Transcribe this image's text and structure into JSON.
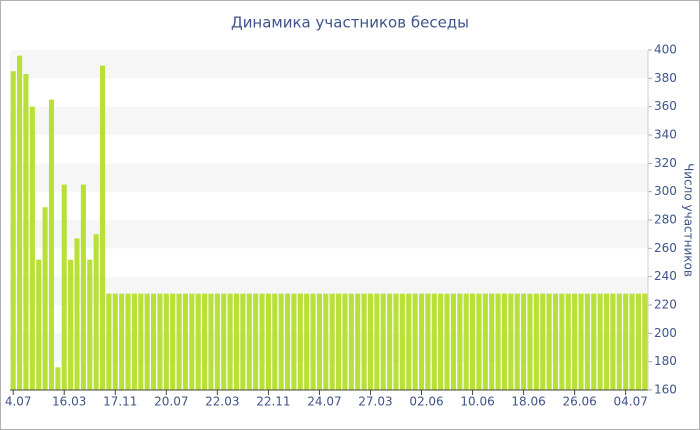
{
  "chart_data": {
    "type": "bar",
    "title": "Динамика участников беседы",
    "y_label": "Число участников",
    "categories": [
      "4.07",
      null,
      null,
      null,
      null,
      null,
      null,
      null,
      "16.03",
      null,
      null,
      null,
      null,
      null,
      null,
      null,
      "17.11",
      null,
      null,
      null,
      null,
      null,
      null,
      null,
      "20.07",
      null,
      null,
      null,
      null,
      null,
      null,
      null,
      "22.03",
      null,
      null,
      null,
      null,
      null,
      null,
      null,
      "22.11",
      null,
      null,
      null,
      null,
      null,
      null,
      null,
      "24.07",
      null,
      null,
      null,
      null,
      null,
      null,
      null,
      "27.03",
      null,
      null,
      null,
      null,
      null,
      null,
      null,
      "02.06",
      null,
      null,
      null,
      null,
      null,
      null,
      null,
      "10.06",
      null,
      null,
      null,
      null,
      null,
      null,
      null,
      "18.06",
      null,
      null,
      null,
      null,
      null,
      null,
      null,
      "26.06",
      null,
      null,
      null,
      null,
      null,
      null,
      null,
      "04.07",
      null,
      null,
      null
    ],
    "values": [
      385,
      396,
      383,
      360,
      252,
      289,
      365,
      176,
      305,
      252,
      267,
      305,
      252,
      270,
      389,
      228,
      228,
      228,
      228,
      228,
      228,
      228,
      228,
      228,
      228,
      228,
      228,
      228,
      228,
      228,
      228,
      228,
      228,
      228,
      228,
      228,
      228,
      228,
      228,
      228,
      228,
      228,
      228,
      228,
      228,
      228,
      228,
      228,
      228,
      228,
      228,
      228,
      228,
      228,
      228,
      228,
      228,
      228,
      228,
      228,
      228,
      228,
      228,
      228,
      228,
      228,
      228,
      228,
      228,
      228,
      228,
      228,
      228,
      228,
      228,
      228,
      228,
      228,
      228,
      228,
      228,
      228,
      228,
      228,
      228,
      228,
      228,
      228,
      228,
      228,
      228,
      228,
      228,
      228,
      228,
      228,
      228,
      228,
      228,
      228
    ],
    "color": "#b8e036",
    "ylim": [
      160,
      400
    ],
    "yticks": [
      160,
      180,
      200,
      220,
      240,
      260,
      280,
      300,
      320,
      340,
      360,
      380,
      400
    ],
    "grid": true
  }
}
